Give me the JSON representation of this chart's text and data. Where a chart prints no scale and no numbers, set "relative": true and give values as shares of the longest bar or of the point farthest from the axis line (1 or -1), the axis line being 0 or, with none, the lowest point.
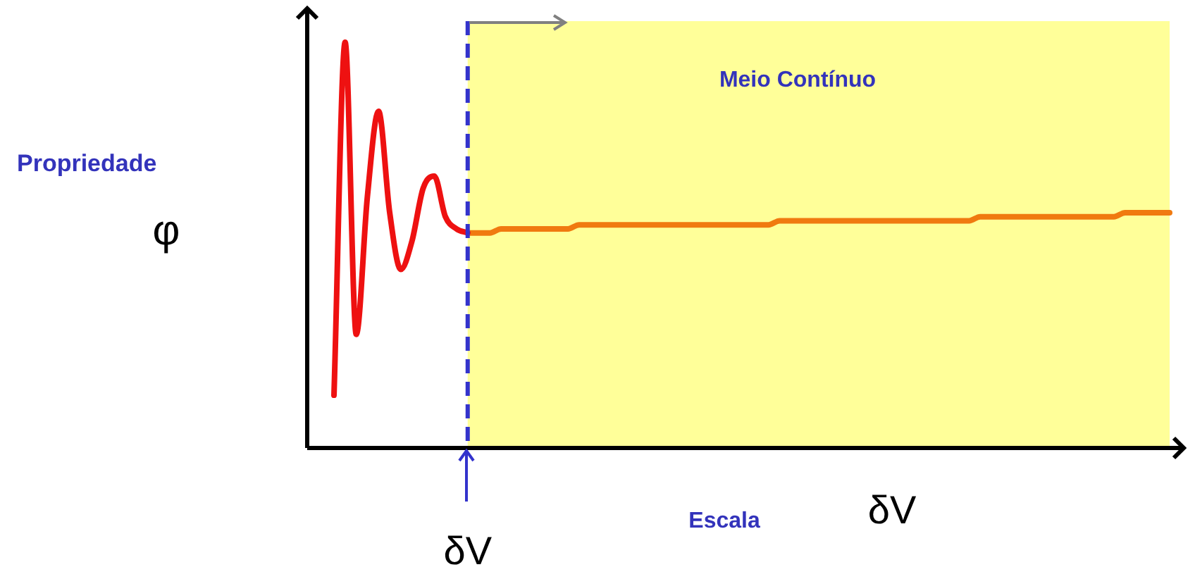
{
  "chart_data": {
    "type": "line",
    "relative": true,
    "marker": "none",
    "xlabel": "Escala",
    "annotations": [
      "Propriedade",
      "φ",
      "Meio Contínuo",
      "δV",
      "δV"
    ],
    "categories": [
      null,
      null,
      null,
      null,
      null,
      null,
      null,
      null,
      null,
      null,
      null,
      null,
      null,
      null,
      null,
      null,
      null,
      null,
      null,
      null,
      null,
      null,
      null,
      null,
      null,
      null,
      null,
      null,
      null,
      null,
      null,
      null,
      null,
      null,
      null,
      null,
      null,
      null,
      null,
      null,
      null,
      null,
      null,
      null,
      null,
      null,
      null,
      null,
      null,
      null,
      null,
      null,
      null,
      null,
      null,
      null,
      null,
      null,
      null,
      null,
      null,
      null,
      null,
      null,
      null,
      null,
      null,
      null,
      null,
      null,
      null,
      null,
      null,
      null,
      null,
      null
    ],
    "series": [
      {
        "color": "#ee1111",
        "values": [
          0.13,
          1.0,
          0.28,
          0.62,
          0.83,
          0.58,
          0.44,
          0.51,
          0.64,
          0.67,
          0.57,
          0.54,
          0.53,
          null,
          null,
          null,
          null,
          null,
          null,
          null,
          null,
          null,
          null,
          null,
          null,
          null,
          null,
          null,
          null,
          null,
          null,
          null,
          null,
          null,
          null,
          null,
          null,
          null,
          null,
          null,
          null,
          null,
          null,
          null,
          null,
          null,
          null,
          null,
          null,
          null,
          null,
          null,
          null,
          null,
          null,
          null,
          null,
          null,
          null,
          null,
          null,
          null,
          null,
          null,
          null,
          null,
          null,
          null,
          null,
          null,
          null,
          null,
          null,
          null,
          null,
          null
        ]
      },
      {
        "color": "#f07a10",
        "values": [
          null,
          null,
          null,
          null,
          null,
          null,
          null,
          null,
          null,
          null,
          null,
          null,
          0.53,
          0.53,
          0.53,
          0.54,
          0.54,
          0.54,
          0.54,
          0.54,
          0.54,
          0.54,
          0.55,
          0.55,
          0.55,
          0.55,
          0.55,
          0.55,
          0.55,
          0.55,
          0.55,
          0.55,
          0.55,
          0.55,
          0.55,
          0.55,
          0.55,
          0.55,
          0.55,
          0.55,
          0.56,
          0.56,
          0.56,
          0.56,
          0.56,
          0.56,
          0.56,
          0.56,
          0.56,
          0.56,
          0.56,
          0.56,
          0.56,
          0.56,
          0.56,
          0.56,
          0.56,
          0.56,
          0.57,
          0.57,
          0.57,
          0.57,
          0.57,
          0.57,
          0.57,
          0.57,
          0.57,
          0.57,
          0.57,
          0.57,
          0.57,
          0.58,
          0.58,
          0.58,
          0.58,
          0.58
        ]
      }
    ]
  }
}
